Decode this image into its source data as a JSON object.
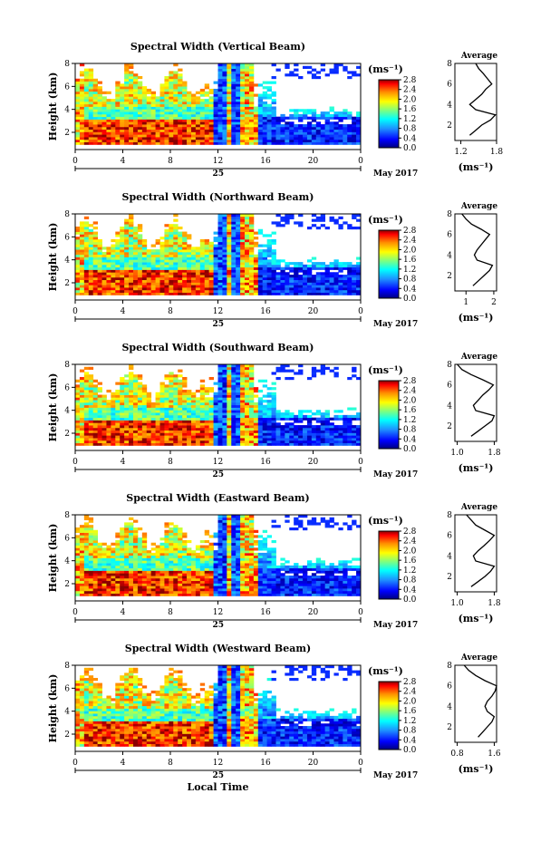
{
  "common": {
    "date_label": "25",
    "month_year": "May 2017",
    "x_axis_title": "Local Time",
    "y_axis_title": "Height (km)",
    "units": "(ms⁻¹)",
    "avg_title": "Average",
    "x_ticks": [
      "0",
      "4",
      "8",
      "12",
      "16",
      "20",
      "0"
    ],
    "y_ticks": [
      "2",
      "4",
      "6",
      "8"
    ],
    "colorbar_ticks": [
      "2.8",
      "2.4",
      "2.0",
      "1.6",
      "1.2",
      "0.8",
      "0.4",
      "0.0"
    ],
    "colorbar_colors": [
      "#000080",
      "#0000ff",
      "#1e90ff",
      "#00ffff",
      "#7fff7f",
      "#ffff00",
      "#ff8c00",
      "#ff0000",
      "#8b0000"
    ]
  },
  "chart_data": [
    {
      "type": "heatmap",
      "title": "Spectral Width (Vertical Beam)",
      "xlabel": "",
      "ylabel": "Height (km)",
      "xlim": [
        0,
        24
      ],
      "ylim": [
        0.5,
        8
      ],
      "colorbar": {
        "label": "(ms⁻¹)",
        "range": [
          0.0,
          2.8
        ]
      },
      "profile": {
        "title": "Average",
        "xlabel": "(ms⁻¹)",
        "x_ticks": [
          "1.2",
          "1.8"
        ],
        "xlim": [
          1.1,
          1.8
        ],
        "heights": [
          1.0,
          1.5,
          2.0,
          2.5,
          3.0,
          3.5,
          4.0,
          4.5,
          5.0,
          5.5,
          6.0,
          6.5,
          7.0,
          7.5,
          8.0
        ],
        "values": [
          1.35,
          1.45,
          1.55,
          1.7,
          1.78,
          1.45,
          1.35,
          1.45,
          1.55,
          1.62,
          1.72,
          1.65,
          1.58,
          1.5,
          1.45
        ]
      }
    },
    {
      "type": "heatmap",
      "title": "Spectral Width (Northward Beam)",
      "xlabel": "",
      "ylabel": "Height (km)",
      "xlim": [
        0,
        24
      ],
      "ylim": [
        0.5,
        8
      ],
      "colorbar": {
        "label": "(ms⁻¹)",
        "range": [
          0.0,
          2.8
        ]
      },
      "profile": {
        "title": "Average",
        "xlabel": "(ms⁻¹)",
        "x_ticks": [
          "1",
          "2"
        ],
        "xlim": [
          0.6,
          2.1
        ],
        "heights": [
          1.0,
          1.5,
          2.0,
          2.5,
          3.0,
          3.5,
          4.0,
          4.5,
          5.0,
          5.5,
          6.0,
          6.5,
          7.0,
          7.5,
          8.0
        ],
        "values": [
          1.25,
          1.45,
          1.65,
          1.85,
          1.95,
          1.4,
          1.3,
          1.4,
          1.55,
          1.7,
          1.85,
          1.55,
          1.2,
          1.0,
          0.85
        ]
      }
    },
    {
      "type": "heatmap",
      "title": "Spectral Width (Southward Beam)",
      "xlabel": "",
      "ylabel": "Height (km)",
      "xlim": [
        0,
        24
      ],
      "ylim": [
        0.5,
        8
      ],
      "colorbar": {
        "label": "(ms⁻¹)",
        "range": [
          0.0,
          2.8
        ]
      },
      "profile": {
        "title": "Average",
        "xlabel": "(ms⁻¹)",
        "x_ticks": [
          "1.0",
          "1.8"
        ],
        "xlim": [
          0.95,
          1.85
        ],
        "heights": [
          1.0,
          1.5,
          2.0,
          2.5,
          3.0,
          3.5,
          4.0,
          4.5,
          5.0,
          5.5,
          6.0,
          6.5,
          7.0,
          7.5,
          8.0
        ],
        "values": [
          1.3,
          1.45,
          1.6,
          1.75,
          1.8,
          1.4,
          1.35,
          1.45,
          1.55,
          1.68,
          1.78,
          1.55,
          1.3,
          1.1,
          1.0
        ]
      }
    },
    {
      "type": "heatmap",
      "title": "Spectral Width (Eastward Beam)",
      "xlabel": "",
      "ylabel": "Height (km)",
      "xlim": [
        0,
        24
      ],
      "ylim": [
        0.5,
        8
      ],
      "colorbar": {
        "label": "(ms⁻¹)",
        "range": [
          0.0,
          2.8
        ]
      },
      "profile": {
        "title": "Average",
        "xlabel": "(ms⁻¹)",
        "x_ticks": [
          "1.0",
          "1.8"
        ],
        "xlim": [
          0.95,
          1.85
        ],
        "heights": [
          1.0,
          1.5,
          2.0,
          2.5,
          3.0,
          3.5,
          4.0,
          4.5,
          5.0,
          5.5,
          6.0,
          6.5,
          7.0,
          7.5,
          8.0
        ],
        "values": [
          1.3,
          1.45,
          1.6,
          1.72,
          1.8,
          1.4,
          1.35,
          1.45,
          1.58,
          1.7,
          1.8,
          1.6,
          1.4,
          1.3,
          1.2
        ]
      }
    },
    {
      "type": "heatmap",
      "title": "Spectral Width (Westward Beam)",
      "xlabel": "Local Time",
      "ylabel": "Height (km)",
      "xlim": [
        0,
        24
      ],
      "ylim": [
        0.5,
        8
      ],
      "colorbar": {
        "label": "(ms⁻¹)",
        "range": [
          0.0,
          2.8
        ]
      },
      "profile": {
        "title": "Average",
        "xlabel": "(ms⁻¹)",
        "x_ticks": [
          "0.8",
          "1.6"
        ],
        "xlim": [
          0.75,
          1.65
        ],
        "heights": [
          1.0,
          1.5,
          2.0,
          2.5,
          3.0,
          3.5,
          4.0,
          4.5,
          5.0,
          5.5,
          6.0,
          6.5,
          7.0,
          7.5,
          8.0
        ],
        "values": [
          1.25,
          1.35,
          1.45,
          1.55,
          1.6,
          1.45,
          1.4,
          1.45,
          1.55,
          1.62,
          1.65,
          1.4,
          1.2,
          1.05,
          0.95
        ]
      }
    }
  ]
}
